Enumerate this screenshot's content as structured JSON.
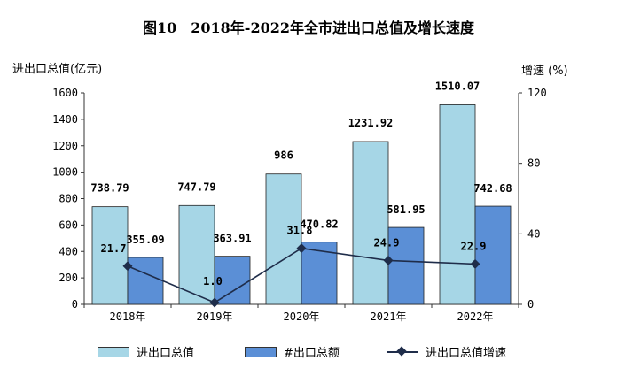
{
  "chart_data": {
    "type": "bar",
    "title": "图10　2018年-2022年全市进出口总值及增长速度",
    "ylabel": "进出口总值(亿元)",
    "y2label": "增速 (%)",
    "categories": [
      "2018年",
      "2019年",
      "2020年",
      "2021年",
      "2022年"
    ],
    "ylim": [
      0,
      1600
    ],
    "yticks": [
      0,
      200,
      400,
      600,
      800,
      1000,
      1200,
      1400,
      1600
    ],
    "y2lim": [
      0,
      120
    ],
    "y2ticks": [
      0,
      40,
      80,
      120
    ],
    "series": [
      {
        "name": "进出口总值",
        "type": "bar",
        "axis": "left",
        "color": "#a6d6e6",
        "values": [
          738.79,
          747.79,
          986,
          1231.92,
          1510.07
        ],
        "labels": [
          "738.79",
          "747.79",
          "986",
          "1231.92",
          "1510.07"
        ]
      },
      {
        "name": "#出口总额",
        "type": "bar",
        "axis": "left",
        "color": "#5b8fd6",
        "values": [
          355.09,
          363.91,
          470.82,
          581.95,
          742.68
        ],
        "labels": [
          "355.09",
          "363.91",
          "470.82",
          "581.95",
          "742.68"
        ]
      },
      {
        "name": "进出口总值增速",
        "type": "line",
        "axis": "right",
        "color": "#1f2d4a",
        "values": [
          21.7,
          1.0,
          31.8,
          24.9,
          22.9
        ],
        "labels": [
          "21.7",
          "1.0",
          "31.8",
          "24.9",
          "22.9"
        ]
      }
    ],
    "legend_position": "bottom"
  }
}
